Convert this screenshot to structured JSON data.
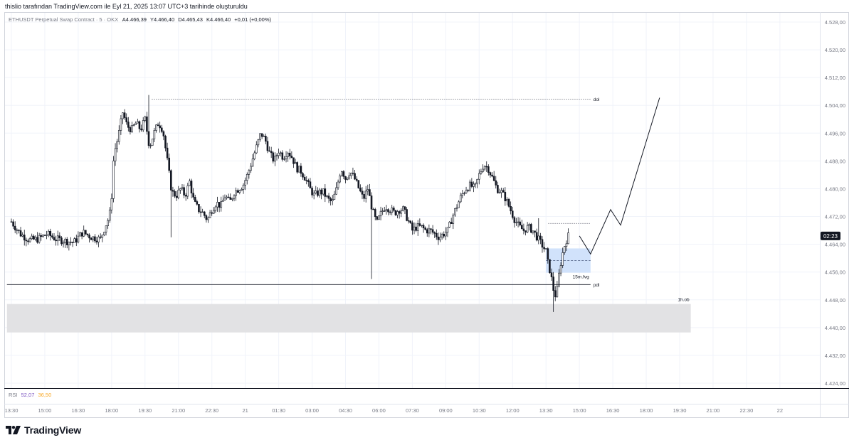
{
  "header": {
    "author_line": "thislio tarafından TradingView.com ile Eyl 21, 2025 13:07 UTC+3 tarihinde oluşturuldu"
  },
  "legend": {
    "symbol": "ETHUSDT Perpetual Swap Contract · 5 · OKX",
    "open_label": "A",
    "open": "4.466,39",
    "high_label": "Y",
    "high": "4.466,40",
    "low_label": "D",
    "low": "4.465,43",
    "close_label": "K",
    "close": "4.466,40",
    "change": "+0,01 (+0,00%)"
  },
  "price_badge": {
    "value": "02:23",
    "price": 4466.4
  },
  "rsi": {
    "label": "RSI",
    "value1": "52,07",
    "value2": "36,50"
  },
  "branding": {
    "logo_text": "TradingView"
  },
  "colors": {
    "candle": "#131722",
    "fvg_zone": "#cfe0fb",
    "ob_zone": "#e0e0e3",
    "rsi_value1": "#7e57c2",
    "rsi_value2": "#f9a825",
    "badge_bg": "#131722",
    "grid": "#f0f3fa"
  },
  "chart_data": {
    "type": "candlestick",
    "title": "",
    "ylim": [
      4420,
      4532
    ],
    "y_ticks": [
      "4.528,00",
      "4.520,00",
      "4.512,00",
      "4.504,00",
      "4.496,00",
      "4.488,00",
      "4.480,00",
      "4.472,00",
      "4.464,00",
      "4.456,00",
      "4.448,00",
      "4.440,00",
      "4.432,00",
      "4.424,00"
    ],
    "y_tick_values": [
      4528,
      4520,
      4512,
      4504,
      4496,
      4488,
      4480,
      4472,
      4464,
      4456,
      4448,
      4440,
      4432,
      4424
    ],
    "x_ticks": [
      "13:30",
      "15:00",
      "16:30",
      "18:00",
      "19:30",
      "21:00",
      "22:30",
      "21",
      "01:30",
      "03:00",
      "04:30",
      "06:00",
      "07:30",
      "09:00",
      "10:30",
      "12:00",
      "13:30",
      "15:00",
      "16:30",
      "18:00",
      "19:30",
      "21:00",
      "22:30",
      "22"
    ],
    "x_tick_hours": [
      0,
      1.5,
      3,
      4.5,
      6,
      7.5,
      9,
      10.5,
      12,
      13.5,
      15,
      16.5,
      18,
      19.5,
      21,
      22.5,
      24,
      25.5,
      27,
      28.5,
      30,
      31.5,
      33,
      34.5
    ],
    "x_unit": "hours since 13:30",
    "price_path": [
      [
        0,
        4470.5
      ],
      [
        0.4,
        4467
      ],
      [
        0.8,
        4465.2
      ],
      [
        1.2,
        4465.5
      ],
      [
        1.6,
        4467
      ],
      [
        2,
        4465.5
      ],
      [
        2.4,
        4465
      ],
      [
        2.8,
        4464.5
      ],
      [
        3.2,
        4467.5
      ],
      [
        3.6,
        4466
      ],
      [
        4,
        4465.5
      ],
      [
        4.2,
        4469
      ],
      [
        4.4,
        4472
      ],
      [
        4.5,
        4478
      ],
      [
        4.6,
        4490
      ],
      [
        4.8,
        4495
      ],
      [
        5,
        4502
      ],
      [
        5.2,
        4498
      ],
      [
        5.4,
        4497
      ],
      [
        5.6,
        4499
      ],
      [
        5.8,
        4497
      ],
      [
        6,
        4500
      ],
      [
        6.2,
        4492
      ],
      [
        6.4,
        4496
      ],
      [
        6.6,
        4499
      ],
      [
        6.8,
        4497
      ],
      [
        7,
        4488
      ],
      [
        7.2,
        4479
      ],
      [
        7.4,
        4478
      ],
      [
        7.6,
        4480
      ],
      [
        7.8,
        4478
      ],
      [
        8,
        4482
      ],
      [
        8.2,
        4476
      ],
      [
        8.4,
        4474
      ],
      [
        8.6,
        4473
      ],
      [
        8.8,
        4471
      ],
      [
        9,
        4474
      ],
      [
        9.2,
        4476
      ],
      [
        9.4,
        4475
      ],
      [
        9.6,
        4478
      ],
      [
        9.8,
        4476
      ],
      [
        10,
        4479
      ],
      [
        10.2,
        4480
      ],
      [
        10.4,
        4481
      ],
      [
        10.6,
        4484
      ],
      [
        10.8,
        4488
      ],
      [
        11,
        4492
      ],
      [
        11.2,
        4496
      ],
      [
        11.4,
        4494
      ],
      [
        11.6,
        4490
      ],
      [
        11.8,
        4488
      ],
      [
        12,
        4491
      ],
      [
        12.2,
        4489
      ],
      [
        12.4,
        4491
      ],
      [
        12.6,
        4489
      ],
      [
        12.8,
        4486
      ],
      [
        13,
        4485
      ],
      [
        13.2,
        4483
      ],
      [
        13.4,
        4480
      ],
      [
        13.6,
        4478
      ],
      [
        13.8,
        4479
      ],
      [
        14,
        4479
      ],
      [
        14.2,
        4477
      ],
      [
        14.4,
        4476
      ],
      [
        14.6,
        4480
      ],
      [
        14.8,
        4486
      ],
      [
        15,
        4483
      ],
      [
        15.2,
        4485
      ],
      [
        15.4,
        4483
      ],
      [
        15.6,
        4480
      ],
      [
        15.8,
        4477
      ],
      [
        16,
        4480
      ],
      [
        16.2,
        4474
      ],
      [
        16.4,
        4470
      ],
      [
        16.6,
        4473
      ],
      [
        16.8,
        4475
      ],
      [
        17,
        4474
      ],
      [
        17.2,
        4473
      ],
      [
        17.4,
        4474
      ],
      [
        17.6,
        4474
      ],
      [
        17.8,
        4471
      ],
      [
        18,
        4468
      ],
      [
        18.2,
        4469
      ],
      [
        18.4,
        4469
      ],
      [
        18.6,
        4468
      ],
      [
        18.8,
        4468
      ],
      [
        19,
        4467
      ],
      [
        19.2,
        4466
      ],
      [
        19.4,
        4467
      ],
      [
        19.6,
        4468
      ],
      [
        19.8,
        4472
      ],
      [
        20,
        4475
      ],
      [
        20.2,
        4478
      ],
      [
        20.4,
        4480
      ],
      [
        20.6,
        4481
      ],
      [
        20.8,
        4480
      ],
      [
        21,
        4484
      ],
      [
        21.2,
        4487
      ],
      [
        21.4,
        4486
      ],
      [
        21.6,
        4483
      ],
      [
        21.8,
        4480
      ],
      [
        22,
        4479
      ],
      [
        22.2,
        4477
      ],
      [
        22.4,
        4474
      ],
      [
        22.6,
        4471
      ],
      [
        22.8,
        4469
      ],
      [
        23,
        4468
      ],
      [
        23.2,
        4469
      ],
      [
        23.4,
        4468
      ],
      [
        23.6,
        4466
      ],
      [
        23.8,
        4464
      ],
      [
        24,
        4462
      ],
      [
        24.1,
        4458
      ],
      [
        24.2,
        4456
      ],
      [
        24.3,
        4452
      ],
      [
        24.4,
        4449
      ],
      [
        24.5,
        4451
      ],
      [
        24.6,
        4456
      ],
      [
        24.7,
        4460
      ],
      [
        24.8,
        4463
      ],
      [
        24.9,
        4465
      ],
      [
        25,
        4466.4
      ]
    ],
    "annotations": [
      {
        "label": "dol",
        "price": 4505.8,
        "x_start": 6.3,
        "x_end": 26.0,
        "style": "dotted"
      },
      {
        "label": "pdl",
        "price": 4452.4,
        "x_start": -0.2,
        "x_end": 26.0,
        "style": "solid"
      },
      {
        "label": "15m.fvg",
        "price_top": 4462.8,
        "price_bottom": 4455.8,
        "x_start": 24.0,
        "x_end": 26.0,
        "style": "zone"
      },
      {
        "label": "1h.ob",
        "price_top": 4446.8,
        "price_bottom": 4438.6,
        "x_start": -0.2,
        "x_end": 30.5,
        "style": "zone"
      }
    ],
    "projection": [
      [
        25.5,
        4466.4
      ],
      [
        26.0,
        4461.2
      ],
      [
        26.9,
        4474
      ],
      [
        27.35,
        4469.5
      ],
      [
        29.1,
        4506.2
      ]
    ],
    "rsi": {
      "value1": 52.07,
      "value2": 36.5
    }
  }
}
